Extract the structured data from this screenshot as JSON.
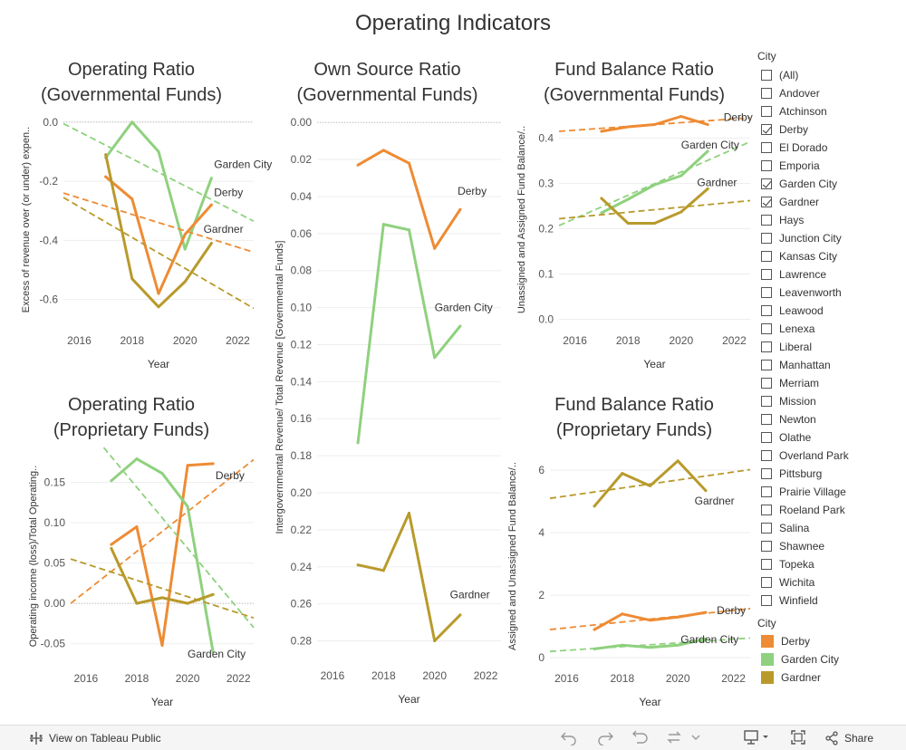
{
  "dashboard": {
    "title": "Operating Indicators"
  },
  "colors": {
    "Derby": "#ee8b34",
    "Garden City": "#8fd17e",
    "Gardner": "#b89a2c"
  },
  "legend": {
    "filter_title": "City",
    "filter_items": [
      {
        "label": "(All)",
        "checked": false
      },
      {
        "label": "Andover",
        "checked": false
      },
      {
        "label": "Atchinson",
        "checked": false
      },
      {
        "label": "Derby",
        "checked": true
      },
      {
        "label": "El Dorado",
        "checked": false
      },
      {
        "label": "Emporia",
        "checked": false
      },
      {
        "label": "Garden City",
        "checked": true
      },
      {
        "label": "Gardner",
        "checked": true
      },
      {
        "label": "Hays",
        "checked": false
      },
      {
        "label": "Junction City",
        "checked": false
      },
      {
        "label": "Kansas City",
        "checked": false
      },
      {
        "label": "Lawrence",
        "checked": false
      },
      {
        "label": "Leavenworth",
        "checked": false
      },
      {
        "label": "Leawood",
        "checked": false
      },
      {
        "label": "Lenexa",
        "checked": false
      },
      {
        "label": "Liberal",
        "checked": false
      },
      {
        "label": "Manhattan",
        "checked": false
      },
      {
        "label": "Merriam",
        "checked": false
      },
      {
        "label": "Mission",
        "checked": false
      },
      {
        "label": "Newton",
        "checked": false
      },
      {
        "label": "Olathe",
        "checked": false
      },
      {
        "label": "Overland Park",
        "checked": false
      },
      {
        "label": "Pittsburg",
        "checked": false
      },
      {
        "label": "Prairie Village",
        "checked": false
      },
      {
        "label": "Roeland Park",
        "checked": false
      },
      {
        "label": "Salina",
        "checked": false
      },
      {
        "label": "Shawnee",
        "checked": false
      },
      {
        "label": "Topeka",
        "checked": false
      },
      {
        "label": "Wichita",
        "checked": false
      },
      {
        "label": "Winfield",
        "checked": false
      }
    ],
    "color_title": "City",
    "color_items": [
      {
        "label": "Derby",
        "color": "#ee8b34"
      },
      {
        "label": "Garden City",
        "color": "#8fd17e"
      },
      {
        "label": "Gardner",
        "color": "#b89a2c"
      }
    ]
  },
  "toolbar": {
    "view_label": "View on Tableau Public",
    "share_label": "Share",
    "icons": [
      "undo-icon",
      "redo-icon",
      "revert-icon",
      "refresh-icon",
      "download-icon",
      "fullscreen-icon",
      "share-icon"
    ]
  },
  "chart_data": [
    {
      "id": "op-gov",
      "type": "line",
      "title": [
        "Operating Ratio",
        "(Governmental Funds)"
      ],
      "xlabel": "Year",
      "ylabel": "Excess of revenue over (or under) expen..",
      "xlim": [
        2015.4,
        2022.6
      ],
      "ylim": [
        -0.69,
        0.03
      ],
      "xticks": [
        2016,
        2018,
        2020,
        2022
      ],
      "yticks": [
        0.0,
        -0.2,
        -0.4,
        -0.6
      ],
      "ytick_labels": [
        "0.0",
        "-0.2",
        "-0.4",
        "-0.6"
      ],
      "reversed": false,
      "zero_line": 0,
      "series": [
        {
          "name": "Garden City",
          "x": [
            2017,
            2018,
            2019,
            2020,
            2021
          ],
          "y": [
            -0.12,
            0.0,
            -0.1,
            -0.43,
            -0.19
          ],
          "trend": [
            [
              2015.4,
              -0.005
            ],
            [
              2022.6,
              -0.335
            ]
          ],
          "label": "Garden City",
          "label_at": [
            2021.1,
            -0.155
          ]
        },
        {
          "name": "Derby",
          "x": [
            2017,
            2018,
            2019,
            2020,
            2021
          ],
          "y": [
            -0.185,
            -0.26,
            -0.58,
            -0.38,
            -0.28
          ],
          "trend": [
            [
              2015.4,
              -0.24
            ],
            [
              2022.6,
              -0.44
            ]
          ],
          "label": "Derby",
          "label_at": [
            2021.1,
            -0.25
          ]
        },
        {
          "name": "Gardner",
          "x": [
            2017,
            2018,
            2019,
            2020,
            2021
          ],
          "y": [
            -0.11,
            -0.53,
            -0.625,
            -0.54,
            -0.41
          ],
          "trend": [
            [
              2015.4,
              -0.255
            ],
            [
              2022.6,
              -0.63
            ]
          ],
          "label": "Gardner",
          "label_at": [
            2020.7,
            -0.375
          ]
        }
      ]
    },
    {
      "id": "own-source",
      "type": "line",
      "title": [
        "Own Source Ratio",
        "(Governmental Funds)"
      ],
      "xlabel": "Year",
      "ylabel": "Intergovernmental Revenue/ Total Revenue [Governmental Funds]",
      "xlim": [
        2015.4,
        2022.6
      ],
      "ylim": [
        0.291,
        -0.005
      ],
      "xticks": [
        2016,
        2018,
        2020,
        2022
      ],
      "yticks": [
        0.0,
        0.02,
        0.04,
        0.06,
        0.08,
        0.1,
        0.12,
        0.14,
        0.16,
        0.18,
        0.2,
        0.22,
        0.24,
        0.26,
        0.28
      ],
      "ytick_labels": [
        "0.00",
        "0.02",
        "0.04",
        "0.06",
        "0.08",
        "0.10",
        "0.12",
        "0.14",
        "0.16",
        "0.18",
        "0.20",
        "0.22",
        "0.24",
        "0.26",
        "0.28"
      ],
      "reversed": true,
      "zero_line": 0,
      "series": [
        {
          "name": "Derby",
          "x": [
            2017,
            2018,
            2019,
            2020,
            2021
          ],
          "y": [
            0.023,
            0.015,
            0.022,
            0.068,
            0.047
          ],
          "trend": null,
          "label": "Derby",
          "label_at": [
            2020.9,
            0.039
          ]
        },
        {
          "name": "Garden City",
          "x": [
            2017,
            2018,
            2019,
            2020,
            2021
          ],
          "y": [
            0.173,
            0.055,
            0.058,
            0.127,
            0.11
          ],
          "trend": null,
          "label": "Garden City",
          "label_at": [
            2020.0,
            0.102
          ]
        },
        {
          "name": "Gardner",
          "x": [
            2017,
            2018,
            2019,
            2020,
            2021
          ],
          "y": [
            0.239,
            0.242,
            0.211,
            0.28,
            0.266
          ],
          "trend": null,
          "label": "Gardner",
          "label_at": [
            2020.6,
            0.257
          ]
        }
      ]
    },
    {
      "id": "fb-gov",
      "type": "line",
      "title": [
        "Fund Balance Ratio",
        "(Governmental Funds)"
      ],
      "xlabel": "Year",
      "ylabel": "Unassigned and Assigned Fund Balance/..",
      "xlim": [
        2015.4,
        2022.6
      ],
      "ylim": [
        -0.015,
        0.455
      ],
      "xticks": [
        2016,
        2018,
        2020,
        2022
      ],
      "yticks": [
        0.0,
        0.1,
        0.2,
        0.3,
        0.4
      ],
      "ytick_labels": [
        "0.0",
        "0.1",
        "0.2",
        "0.3",
        "0.4"
      ],
      "reversed": false,
      "zero_line": null,
      "series": [
        {
          "name": "Derby",
          "x": [
            2017,
            2018,
            2019,
            2020,
            2021
          ],
          "y": [
            0.415,
            0.425,
            0.43,
            0.448,
            0.43
          ],
          "trend": [
            [
              2015.4,
              0.415
            ],
            [
              2022.6,
              0.445
            ]
          ],
          "label": "Derby",
          "label_at": [
            2021.6,
            0.438
          ]
        },
        {
          "name": "Garden City",
          "x": [
            2017,
            2018,
            2019,
            2020,
            2021
          ],
          "y": [
            0.235,
            0.265,
            0.297,
            0.317,
            0.371
          ],
          "trend": [
            [
              2015.4,
              0.207
            ],
            [
              2022.6,
              0.392
            ]
          ],
          "label": "Garden City",
          "label_at": [
            2020.0,
            0.377
          ]
        },
        {
          "name": "Gardner",
          "x": [
            2017,
            2018,
            2019,
            2020,
            2021
          ],
          "y": [
            0.267,
            0.212,
            0.212,
            0.237,
            0.288
          ],
          "trend": [
            [
              2015.4,
              0.222
            ],
            [
              2022.6,
              0.262
            ]
          ],
          "label": "Gardner",
          "label_at": [
            2020.6,
            0.294
          ]
        }
      ]
    },
    {
      "id": "op-prop",
      "type": "line",
      "title": [
        "Operating Ratio",
        "(Proprietary Funds)"
      ],
      "xlabel": "Year",
      "ylabel": "Operating income (loss)/Total Operating..",
      "xlim": [
        2015.4,
        2022.6
      ],
      "ylim": [
        -0.075,
        0.192
      ],
      "xticks": [
        2016,
        2018,
        2020,
        2022
      ],
      "yticks": [
        0.15,
        0.1,
        0.05,
        0.0,
        -0.05
      ],
      "ytick_labels": [
        "0.15",
        "0.10",
        "0.05",
        "0.00",
        "-0.05"
      ],
      "reversed": false,
      "zero_line": 0,
      "series": [
        {
          "name": "Derby",
          "x": [
            2017,
            2018,
            2019,
            2020,
            2021
          ],
          "y": [
            0.073,
            0.095,
            -0.052,
            0.171,
            0.173
          ],
          "trend": [
            [
              2015.4,
              0.0
            ],
            [
              2022.6,
              0.178
            ]
          ],
          "label": "Derby",
          "label_at": [
            2021.1,
            0.154
          ]
        },
        {
          "name": "Garden City",
          "x": [
            2017,
            2018,
            2019,
            2020,
            2021
          ],
          "y": [
            0.152,
            0.179,
            0.161,
            0.12,
            -0.06
          ],
          "trend": [
            [
              2016.7,
              0.193
            ],
            [
              2022.6,
              -0.03
            ]
          ],
          "label": "Garden City",
          "label_at": [
            2020.0,
            -0.067
          ]
        },
        {
          "name": "Gardner",
          "x": [
            2017,
            2018,
            2019,
            2020,
            2021
          ],
          "y": [
            0.068,
            0.0,
            0.007,
            0.0,
            0.011
          ],
          "trend": [
            [
              2015.4,
              0.055
            ],
            [
              2022.6,
              -0.018
            ]
          ],
          "label": null,
          "label_at": null
        }
      ]
    },
    {
      "id": "fb-prop",
      "type": "line",
      "title": [
        "Fund Balance Ratio",
        "(Proprietary Funds)"
      ],
      "xlabel": "Year",
      "ylabel": "Assigned and Unassigned Fund Balance/..",
      "xlim": [
        2015.4,
        2022.6
      ],
      "ylim": [
        -0.2,
        6.7
      ],
      "xticks": [
        2016,
        2018,
        2020,
        2022
      ],
      "yticks": [
        0,
        2,
        4,
        6
      ],
      "ytick_labels": [
        "0",
        "2",
        "4",
        "6"
      ],
      "reversed": false,
      "zero_line": null,
      "series": [
        {
          "name": "Gardner",
          "x": [
            2017,
            2018,
            2019,
            2020,
            2021
          ],
          "y": [
            4.85,
            5.9,
            5.5,
            6.3,
            5.35
          ],
          "trend": [
            [
              2015.4,
              5.1
            ],
            [
              2022.6,
              6.02
            ]
          ],
          "label": "Gardner",
          "label_at": [
            2020.6,
            4.9
          ]
        },
        {
          "name": "Derby",
          "x": [
            2017,
            2018,
            2019,
            2020,
            2021
          ],
          "y": [
            0.9,
            1.4,
            1.2,
            1.3,
            1.45
          ],
          "trend": [
            [
              2015.4,
              0.9
            ],
            [
              2022.6,
              1.57
            ]
          ],
          "label": "Derby",
          "label_at": [
            2021.4,
            1.4
          ]
        },
        {
          "name": "Garden City",
          "x": [
            2017,
            2018,
            2019,
            2020,
            2021
          ],
          "y": [
            0.28,
            0.4,
            0.33,
            0.4,
            0.6
          ],
          "trend": [
            [
              2015.4,
              0.2
            ],
            [
              2022.6,
              0.63
            ]
          ],
          "label": "Garden City",
          "label_at": [
            2020.1,
            0.47
          ]
        }
      ]
    }
  ]
}
